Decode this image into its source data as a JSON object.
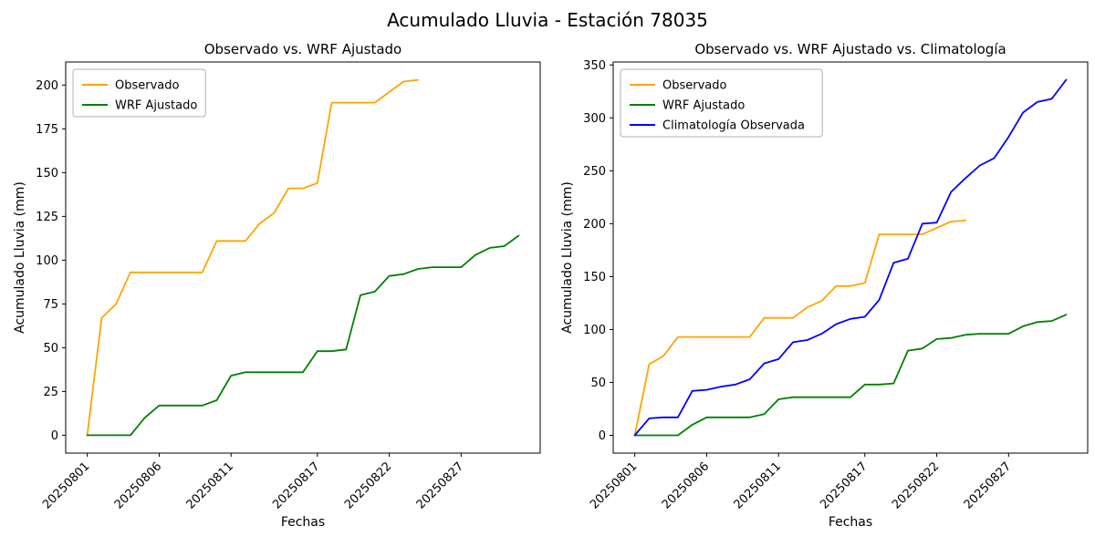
{
  "figure_title": "Acumulado Lluvia - Estación 78035",
  "chart_data": [
    {
      "type": "line",
      "title": "Observado vs. WRF Ajustado",
      "xlabel": "Fechas",
      "ylabel": "Acumulado Lluvia (mm)",
      "ylim": [
        -10.2,
        213.2
      ],
      "xlim": [
        -0.5,
        32.5
      ],
      "yticks": [
        0,
        25,
        50,
        75,
        100,
        125,
        150,
        175,
        200
      ],
      "xticks": [
        {
          "pos": 1,
          "label": "20250801"
        },
        {
          "pos": 6,
          "label": "20250806"
        },
        {
          "pos": 11,
          "label": "20250811"
        },
        {
          "pos": 17,
          "label": "20250817"
        },
        {
          "pos": 22,
          "label": "20250822"
        },
        {
          "pos": 27,
          "label": "20250827"
        }
      ],
      "legend_position": "upper-left",
      "grid": false,
      "series": [
        {
          "name": "Observado",
          "color": "#ffa500",
          "x": [
            1,
            2,
            3,
            4,
            5,
            6,
            7,
            8,
            9,
            10,
            11,
            12,
            13,
            14,
            15,
            16,
            17,
            18,
            19,
            20,
            21,
            22,
            23,
            24
          ],
          "values": [
            0,
            67,
            75,
            93,
            93,
            93,
            93,
            93,
            93,
            111,
            111,
            111,
            121,
            127,
            141,
            141,
            144,
            190,
            190,
            190,
            190,
            196,
            202,
            203
          ]
        },
        {
          "name": "WRF Ajustado",
          "color": "#008000",
          "x": [
            1,
            2,
            3,
            4,
            5,
            6,
            7,
            8,
            9,
            10,
            11,
            12,
            13,
            14,
            15,
            16,
            17,
            18,
            19,
            20,
            21,
            22,
            23,
            24,
            25,
            26,
            27,
            28,
            29,
            30,
            31
          ],
          "values": [
            0,
            0,
            0,
            0,
            10,
            17,
            17,
            17,
            17,
            20,
            34,
            36,
            36,
            36,
            36,
            36,
            48,
            48,
            49,
            80,
            82,
            91,
            92,
            95,
            96,
            96,
            96,
            103,
            107,
            108,
            114
          ]
        }
      ]
    },
    {
      "type": "line",
      "title": "Observado vs. WRF Ajustado vs. Climatología",
      "xlabel": "Fechas",
      "ylabel": "Acumulado Lluvia (mm)",
      "ylim": [
        -16.8,
        352.8
      ],
      "xlim": [
        -0.5,
        32.5
      ],
      "yticks": [
        0,
        50,
        100,
        150,
        200,
        250,
        300,
        350
      ],
      "xticks": [
        {
          "pos": 1,
          "label": "20250801"
        },
        {
          "pos": 6,
          "label": "20250806"
        },
        {
          "pos": 11,
          "label": "20250811"
        },
        {
          "pos": 17,
          "label": "20250817"
        },
        {
          "pos": 22,
          "label": "20250822"
        },
        {
          "pos": 27,
          "label": "20250827"
        }
      ],
      "legend_position": "upper-left",
      "grid": false,
      "series": [
        {
          "name": "Observado",
          "color": "#ffa500",
          "x": [
            1,
            2,
            3,
            4,
            5,
            6,
            7,
            8,
            9,
            10,
            11,
            12,
            13,
            14,
            15,
            16,
            17,
            18,
            19,
            20,
            21,
            22,
            23,
            24
          ],
          "values": [
            0,
            67,
            75,
            93,
            93,
            93,
            93,
            93,
            93,
            111,
            111,
            111,
            121,
            127,
            141,
            141,
            144,
            190,
            190,
            190,
            190,
            196,
            202,
            203
          ]
        },
        {
          "name": "WRF Ajustado",
          "color": "#008000",
          "x": [
            1,
            2,
            3,
            4,
            5,
            6,
            7,
            8,
            9,
            10,
            11,
            12,
            13,
            14,
            15,
            16,
            17,
            18,
            19,
            20,
            21,
            22,
            23,
            24,
            25,
            26,
            27,
            28,
            29,
            30,
            31
          ],
          "values": [
            0,
            0,
            0,
            0,
            10,
            17,
            17,
            17,
            17,
            20,
            34,
            36,
            36,
            36,
            36,
            36,
            48,
            48,
            49,
            80,
            82,
            91,
            92,
            95,
            96,
            96,
            96,
            103,
            107,
            108,
            114
          ]
        },
        {
          "name": "Climatología Observada",
          "color": "#0000ff",
          "x": [
            1,
            2,
            3,
            4,
            5,
            6,
            7,
            8,
            9,
            10,
            11,
            12,
            13,
            14,
            15,
            16,
            17,
            18,
            19,
            20,
            21,
            22,
            23,
            24,
            25,
            26,
            27,
            28,
            29,
            30,
            31
          ],
          "values": [
            0,
            16,
            17,
            17,
            42,
            43,
            46,
            48,
            53,
            68,
            72,
            88,
            90,
            96,
            105,
            110,
            112,
            128,
            163,
            167,
            200,
            201,
            230,
            243,
            255,
            262,
            282,
            305,
            315,
            318,
            336
          ]
        }
      ]
    }
  ]
}
